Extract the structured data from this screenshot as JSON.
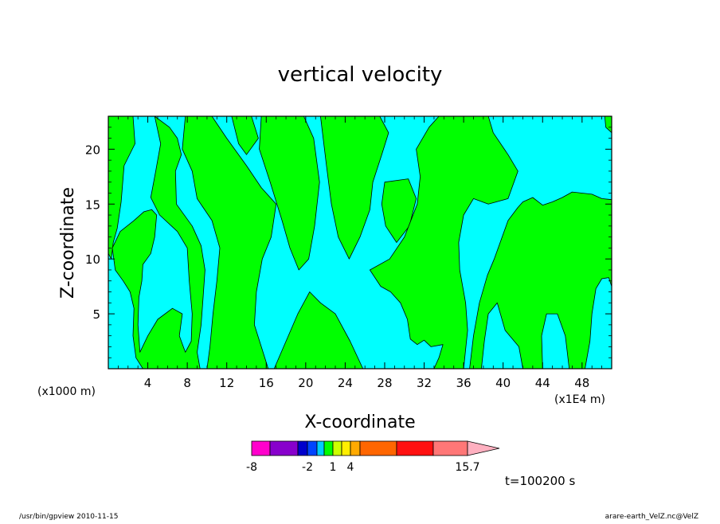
{
  "chart_data": {
    "type": "heatmap",
    "title": "vertical velocity",
    "xlabel": "X-coordinate",
    "ylabel": "Z-coordinate",
    "x_unit_left": "(x1000 m)",
    "x_unit_right": "(x1E4 m)",
    "xlim": [
      0,
      51
    ],
    "ylim": [
      0,
      23
    ],
    "x_ticks": [
      4,
      8,
      12,
      16,
      20,
      24,
      28,
      32,
      36,
      40,
      44,
      48
    ],
    "x_ticklabels": [
      "4",
      "8",
      "12",
      "16",
      "20",
      "24",
      "28",
      "32",
      "36",
      "40",
      "44",
      "48"
    ],
    "y_ticks": [
      5,
      10,
      15,
      20
    ],
    "y_ticklabels": [
      "5",
      "10",
      "15",
      "20"
    ],
    "field_colors": {
      "negative": "#00ffff",
      "positive": "#00ff00",
      "contour": "#000000"
    },
    "green_regions": [
      [
        [
          0,
          23
        ],
        [
          2.5,
          23
        ],
        [
          2.7,
          20.5
        ],
        [
          1.6,
          18.5
        ],
        [
          1.3,
          15.2
        ],
        [
          0.9,
          12.8
        ],
        [
          0.5,
          11.5
        ],
        [
          0.3,
          10
        ],
        [
          0,
          10.5
        ]
      ],
      [
        [
          4.7,
          23
        ],
        [
          6.2,
          22
        ],
        [
          7,
          21
        ],
        [
          7.4,
          19.5
        ],
        [
          6.8,
          18
        ],
        [
          6.9,
          15
        ],
        [
          8.5,
          13
        ],
        [
          9.4,
          11.2
        ],
        [
          9.8,
          9
        ],
        [
          9.6,
          6.5
        ],
        [
          9.4,
          4
        ],
        [
          9,
          1.5
        ],
        [
          9.3,
          0
        ],
        [
          3.5,
          0
        ],
        [
          2.8,
          1
        ],
        [
          2.5,
          3
        ],
        [
          2.6,
          5.5
        ],
        [
          2.2,
          7
        ],
        [
          1.5,
          8
        ],
        [
          0.7,
          9
        ],
        [
          0.4,
          11
        ],
        [
          1.2,
          12.5
        ],
        [
          2.6,
          13.5
        ],
        [
          3.6,
          14.3
        ],
        [
          4.4,
          14.5
        ],
        [
          4.9,
          14
        ],
        [
          4.7,
          12
        ],
        [
          4.3,
          10.5
        ],
        [
          3.5,
          9.5
        ],
        [
          3.4,
          8
        ],
        [
          3.1,
          6.5
        ],
        [
          3,
          4
        ],
        [
          3.2,
          1.5
        ],
        [
          4,
          3
        ],
        [
          5,
          4.5
        ],
        [
          6.5,
          5.5
        ],
        [
          7.5,
          5
        ],
        [
          7.2,
          3
        ],
        [
          7.8,
          1.5
        ],
        [
          8.4,
          2.5
        ],
        [
          8.5,
          5
        ],
        [
          8.2,
          8
        ],
        [
          8,
          11
        ],
        [
          7,
          12.5
        ],
        [
          5.2,
          14
        ],
        [
          4.3,
          15.6
        ],
        [
          4.8,
          18
        ],
        [
          5.3,
          20.5
        ]
      ],
      [
        [
          7.8,
          23
        ],
        [
          10.5,
          23
        ],
        [
          12,
          21
        ],
        [
          14,
          18.5
        ],
        [
          15.5,
          16.5
        ],
        [
          17,
          15
        ],
        [
          16.5,
          12
        ],
        [
          15.6,
          10
        ],
        [
          15,
          7
        ],
        [
          14.8,
          4
        ],
        [
          15.5,
          2
        ],
        [
          16.2,
          0
        ],
        [
          10,
          0
        ],
        [
          10.3,
          2
        ],
        [
          10.6,
          5
        ],
        [
          11,
          8
        ],
        [
          11.3,
          11
        ],
        [
          10.5,
          13.5
        ],
        [
          9,
          15.5
        ],
        [
          8.5,
          18
        ],
        [
          7.5,
          20
        ]
      ],
      [
        [
          16.8,
          0
        ],
        [
          18,
          2.5
        ],
        [
          19.2,
          5
        ],
        [
          20.4,
          7
        ],
        [
          21.5,
          6
        ],
        [
          23,
          5
        ],
        [
          24.5,
          2.5
        ],
        [
          25.8,
          0
        ]
      ],
      [
        [
          12.5,
          23
        ],
        [
          14.5,
          23
        ],
        [
          15.2,
          21
        ],
        [
          14,
          19.5
        ],
        [
          13.2,
          20.5
        ]
      ],
      [
        [
          15.5,
          23
        ],
        [
          19.8,
          23
        ],
        [
          20.8,
          21
        ],
        [
          21.4,
          17
        ],
        [
          20.9,
          13
        ],
        [
          20.3,
          10
        ],
        [
          19.3,
          9
        ],
        [
          18.4,
          11
        ],
        [
          17.6,
          13.5
        ],
        [
          16.4,
          17
        ],
        [
          15.3,
          20
        ]
      ],
      [
        [
          21.5,
          23
        ],
        [
          27.5,
          23
        ],
        [
          28.4,
          21.5
        ],
        [
          27.7,
          19.5
        ],
        [
          26.8,
          17
        ],
        [
          26.5,
          14.5
        ],
        [
          25.5,
          12
        ],
        [
          24.4,
          10
        ],
        [
          23.3,
          12
        ],
        [
          22.6,
          15
        ],
        [
          22.1,
          18.5
        ]
      ],
      [
        [
          28,
          17
        ],
        [
          30.4,
          17.3
        ],
        [
          31.2,
          15.5
        ],
        [
          30.5,
          13
        ],
        [
          29.2,
          11.5
        ],
        [
          28.1,
          13
        ],
        [
          27.7,
          15
        ]
      ],
      [
        [
          26.5,
          9
        ],
        [
          28.5,
          10
        ],
        [
          30,
          12
        ],
        [
          31.3,
          15
        ],
        [
          31.6,
          17.5
        ],
        [
          31.2,
          20
        ],
        [
          32.5,
          22
        ],
        [
          33.5,
          23
        ],
        [
          38.5,
          23
        ],
        [
          39,
          21.5
        ],
        [
          40.5,
          19.5
        ],
        [
          41.5,
          18
        ],
        [
          40.5,
          15.5
        ],
        [
          38.5,
          15
        ],
        [
          37,
          15.5
        ],
        [
          36,
          14
        ],
        [
          35.5,
          11.5
        ],
        [
          35.6,
          9
        ],
        [
          36.2,
          6
        ],
        [
          36.4,
          3.5
        ],
        [
          36,
          0
        ],
        [
          33,
          0
        ],
        [
          33.5,
          1
        ],
        [
          33.9,
          2.2
        ],
        [
          32.7,
          2
        ],
        [
          32,
          2.6
        ],
        [
          31.3,
          2.2
        ],
        [
          30.6,
          2.7
        ],
        [
          30.3,
          4.5
        ],
        [
          29.6,
          6
        ],
        [
          28.6,
          7
        ],
        [
          27.6,
          7.5
        ]
      ],
      [
        [
          36.6,
          0
        ],
        [
          37,
          3
        ],
        [
          37.6,
          6
        ],
        [
          38.4,
          8.5
        ],
        [
          39.1,
          10
        ],
        [
          40.5,
          13.5
        ],
        [
          41.5,
          14.7
        ],
        [
          42,
          15.2
        ],
        [
          43,
          15.6
        ],
        [
          44,
          14.9
        ],
        [
          45,
          15.2
        ],
        [
          46,
          15.6
        ],
        [
          47,
          16.1
        ],
        [
          48,
          16
        ],
        [
          49,
          15.9
        ],
        [
          50,
          15.5
        ],
        [
          51,
          15.4
        ],
        [
          51,
          7.5
        ],
        [
          50.7,
          8.3
        ],
        [
          50,
          8.2
        ],
        [
          49.4,
          7.3
        ],
        [
          49,
          5
        ],
        [
          48.8,
          2.5
        ],
        [
          48.3,
          0
        ],
        [
          46.7,
          0
        ],
        [
          46.3,
          3
        ],
        [
          45.5,
          5
        ],
        [
          44.4,
          5
        ],
        [
          43.9,
          3
        ],
        [
          44,
          0
        ],
        [
          42,
          0
        ],
        [
          41.6,
          2
        ],
        [
          40.2,
          3.5
        ],
        [
          39.4,
          6
        ],
        [
          38.5,
          5
        ],
        [
          38.1,
          2.5
        ],
        [
          37.8,
          0
        ]
      ],
      [
        [
          50.3,
          23
        ],
        [
          51,
          23
        ],
        [
          51,
          21.5
        ],
        [
          50.4,
          22
        ]
      ]
    ],
    "colorbar": {
      "colors": [
        "#ff00cc",
        "#8800cc",
        "#0000cc",
        "#0044ff",
        "#00ccff",
        "#00ff00",
        "#ccff00",
        "#ffee00",
        "#ffaa00",
        "#ff6600",
        "#ff1111",
        "#ff7777",
        "#ffb0c0"
      ],
      "tick_labels": [
        "-8",
        "-2",
        "1",
        "4",
        "15.7"
      ]
    },
    "time_label": "t=100200 s"
  },
  "footer": {
    "left": "/usr/bin/gpview   2010-11-15",
    "right": "arare-earth_VelZ.nc@VelZ"
  }
}
